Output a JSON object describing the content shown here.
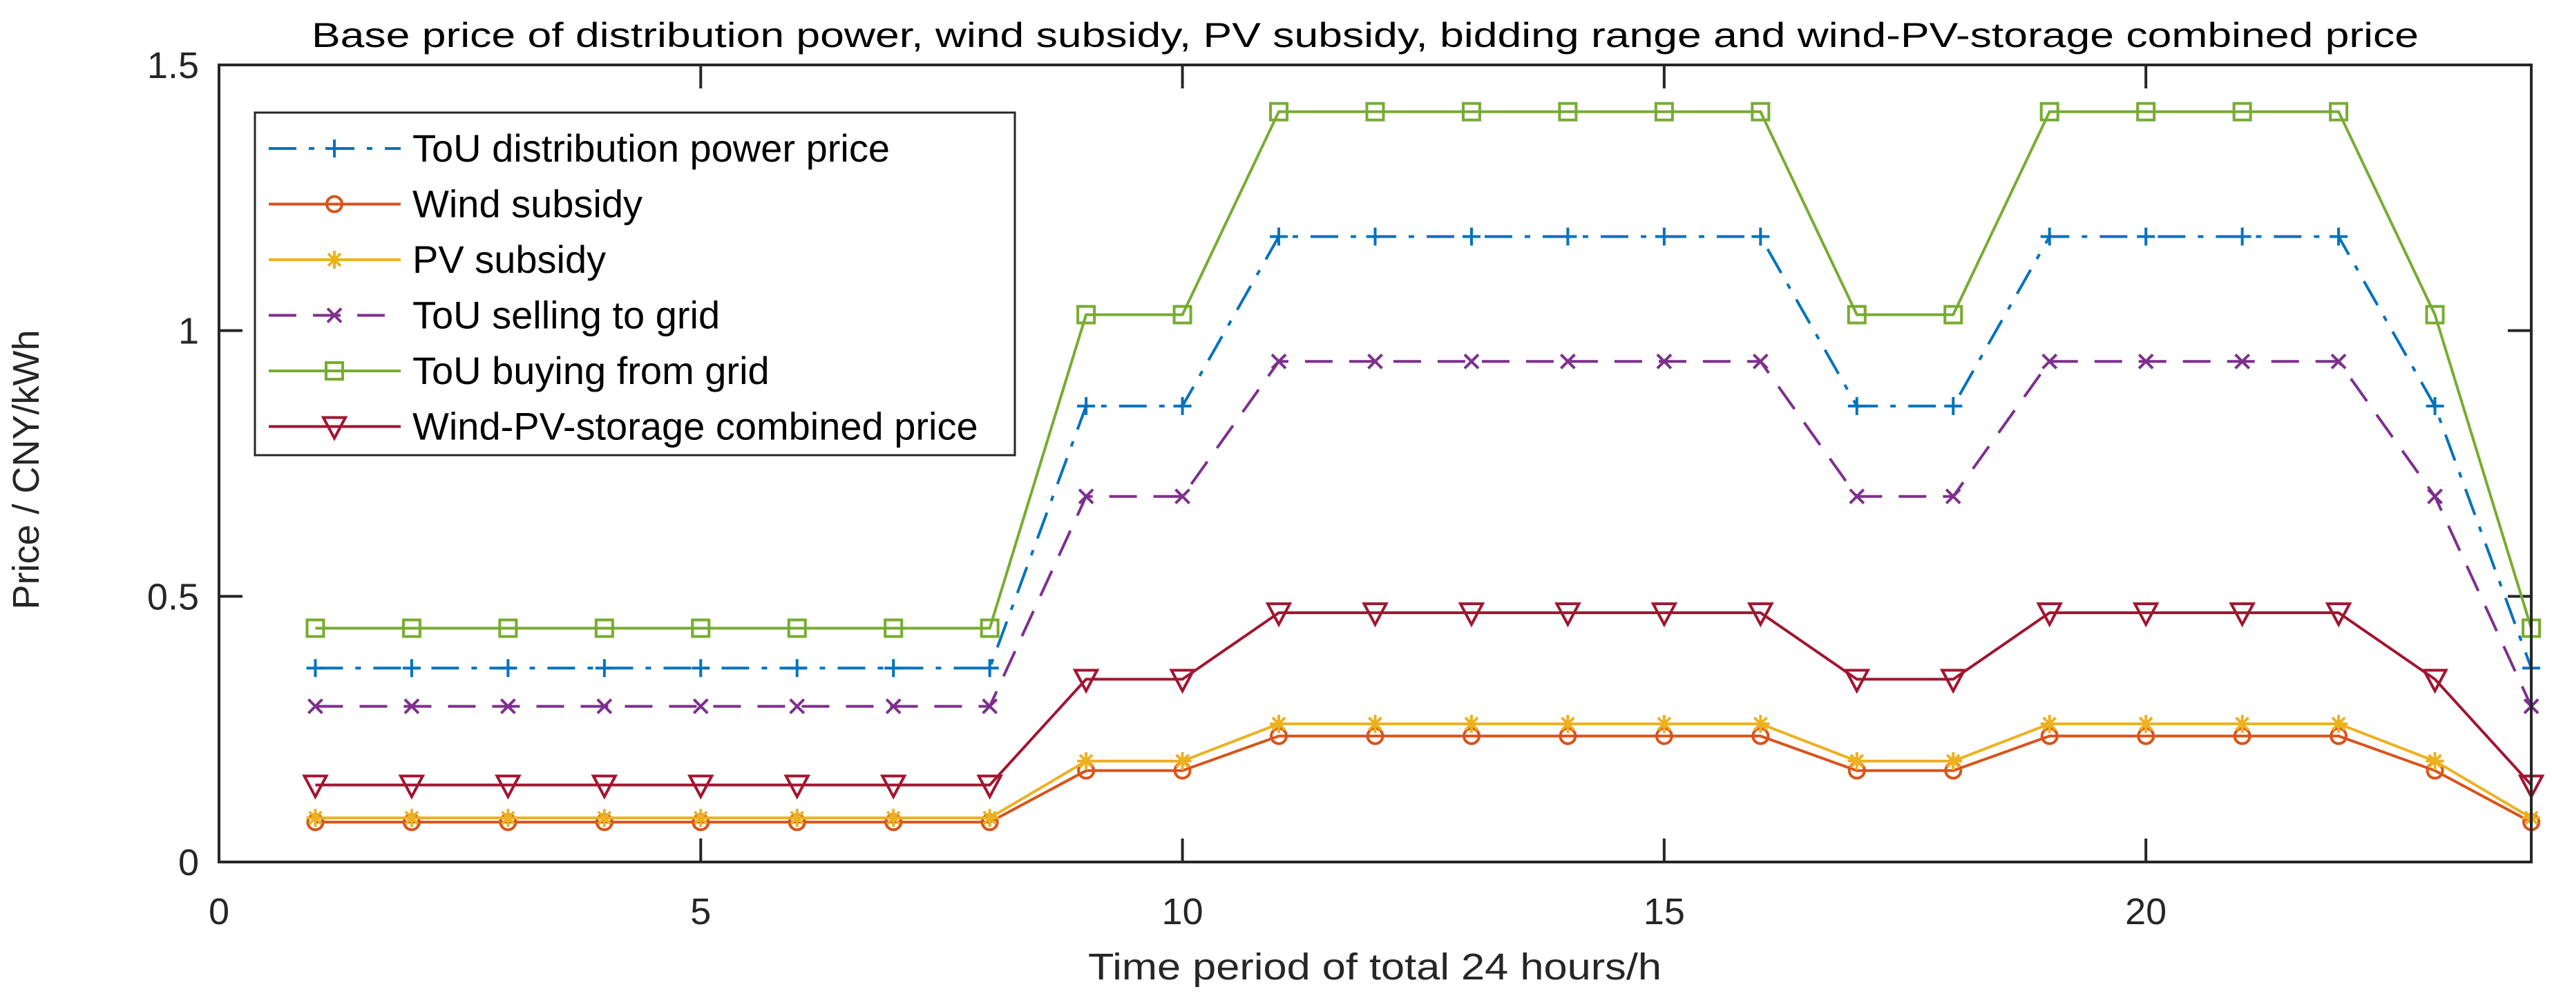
{
  "chart_data": {
    "type": "line",
    "title": "Base price of distribution power, wind subsidy, PV subsidy, bidding range and wind-PV-storage combined price",
    "xlabel": "Time period of total 24 hours/h",
    "ylabel": "Price / CNY/kWh",
    "xlim": [
      0,
      24
    ],
    "ylim": [
      0,
      1.5
    ],
    "xticks": [
      0,
      5,
      10,
      15,
      20
    ],
    "yticks": [
      0,
      0.5,
      1,
      1.5
    ],
    "ytick_labels": [
      "0",
      "0.5",
      "1",
      "1.5"
    ],
    "grid": false,
    "legend_position": "top-left",
    "x": [
      1,
      2,
      3,
      4,
      5,
      6,
      7,
      8,
      9,
      10,
      11,
      12,
      13,
      14,
      15,
      16,
      17,
      18,
      19,
      20,
      21,
      22,
      23,
      24
    ],
    "series": [
      {
        "name": "ToU distribution power price",
        "color": "#0072BD",
        "line": "dash-dot",
        "marker": "plus",
        "values": [
          0.365,
          0.365,
          0.365,
          0.365,
          0.365,
          0.365,
          0.365,
          0.365,
          0.858,
          0.858,
          1.177,
          1.177,
          1.177,
          1.177,
          1.177,
          1.177,
          0.858,
          0.858,
          1.177,
          1.177,
          1.177,
          1.177,
          0.858,
          0.365
        ]
      },
      {
        "name": "Wind subsidy",
        "color": "#D95319",
        "line": "solid",
        "marker": "circle",
        "values": [
          0.075,
          0.075,
          0.075,
          0.075,
          0.075,
          0.075,
          0.075,
          0.075,
          0.172,
          0.172,
          0.237,
          0.237,
          0.237,
          0.237,
          0.237,
          0.237,
          0.172,
          0.172,
          0.237,
          0.237,
          0.237,
          0.237,
          0.172,
          0.075
        ]
      },
      {
        "name": "PV subsidy",
        "color": "#EDB120",
        "line": "solid",
        "marker": "asterisk",
        "values": [
          0.083,
          0.083,
          0.083,
          0.083,
          0.083,
          0.083,
          0.083,
          0.083,
          0.19,
          0.19,
          0.26,
          0.26,
          0.26,
          0.26,
          0.26,
          0.26,
          0.19,
          0.19,
          0.26,
          0.26,
          0.26,
          0.26,
          0.19,
          0.083
        ]
      },
      {
        "name": "ToU selling to grid",
        "color": "#7E2F8E",
        "line": "dashed",
        "marker": "x",
        "values": [
          0.293,
          0.293,
          0.293,
          0.293,
          0.293,
          0.293,
          0.293,
          0.293,
          0.688,
          0.688,
          0.942,
          0.942,
          0.942,
          0.942,
          0.942,
          0.942,
          0.688,
          0.688,
          0.942,
          0.942,
          0.942,
          0.942,
          0.688,
          0.293
        ]
      },
      {
        "name": "ToU buying from grid",
        "color": "#77AC30",
        "line": "solid",
        "marker": "square",
        "values": [
          0.44,
          0.44,
          0.44,
          0.44,
          0.44,
          0.44,
          0.44,
          0.44,
          1.03,
          1.03,
          1.412,
          1.412,
          1.412,
          1.412,
          1.412,
          1.412,
          1.03,
          1.03,
          1.412,
          1.412,
          1.412,
          1.412,
          1.03,
          0.44
        ]
      },
      {
        "name": "Wind-PV-storage combined price",
        "color": "#A2142F",
        "line": "solid",
        "marker": "triangle-down",
        "values": [
          0.145,
          0.145,
          0.145,
          0.145,
          0.145,
          0.145,
          0.145,
          0.145,
          0.344,
          0.344,
          0.469,
          0.469,
          0.469,
          0.469,
          0.469,
          0.469,
          0.344,
          0.344,
          0.469,
          0.469,
          0.469,
          0.469,
          0.344,
          0.145
        ]
      }
    ]
  }
}
